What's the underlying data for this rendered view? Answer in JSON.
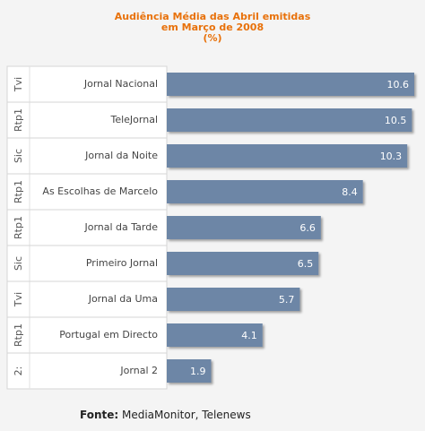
{
  "chart_data": {
    "type": "bar",
    "orientation": "horizontal",
    "title_lines": [
      "Audiência Média das Abril emitidas",
      "em Março de 2008",
      "(%)"
    ],
    "channels": [
      "Tvi",
      "Rtp1",
      "Sic",
      "Rtp1",
      "Rtp1",
      "Sic",
      "Tvi",
      "Rtp1",
      "2:"
    ],
    "categories": [
      "Jornal Nacional",
      "TeleJornal",
      "Jornal da Noite",
      "As Escolhas de Marcelo",
      "Jornal da Tarde",
      "Primeiro Jornal",
      "Jornal da Uma",
      "Portugal em Directo",
      "Jornal 2"
    ],
    "values": [
      10.6,
      10.5,
      10.3,
      8.4,
      6.6,
      6.5,
      5.7,
      4.1,
      1.9
    ],
    "value_labels": [
      "10.6",
      "10.5",
      "10.3",
      "8.4",
      "6.6",
      "6.5",
      "5.7",
      "4.1",
      "1.9"
    ],
    "xlim": [
      0,
      10.6
    ],
    "bar_color": "#6d86a6",
    "label_color": "#ffffff",
    "grid": false
  },
  "source": {
    "label": "Fonte:",
    "text": " MediaMonitor, Telenews"
  }
}
